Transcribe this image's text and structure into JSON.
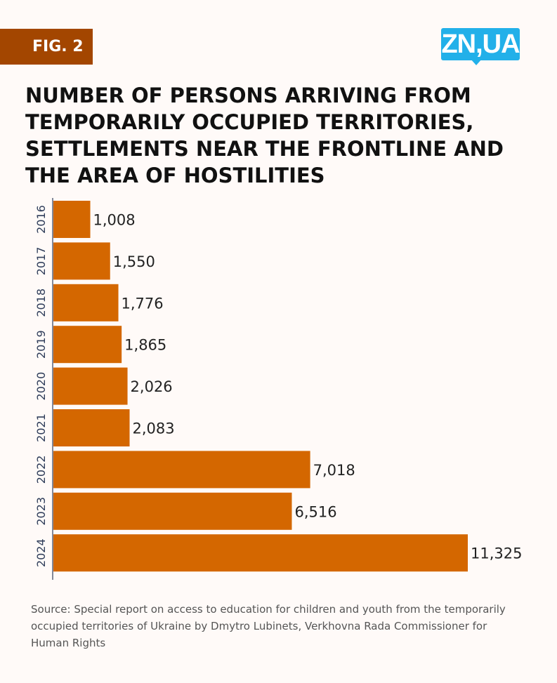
{
  "figure_label": "FIG. 2",
  "logo_text": "ZN,UA",
  "title": "NUMBER OF PERSONS ARRIVING FROM TEMPORARILY OCCUPIED TERRITORIES, SETTLEMENTS NEAR THE FRONTLINE AND THE AREA OF HOSTILITIES",
  "source": "Source: Special report on access to education for children and youth from the temporarily occupied territories of Ukraine by Dmytro Lubinets, Verkhovna Rada Commissioner for Human Rights",
  "chart_data": {
    "type": "bar",
    "orientation": "horizontal",
    "categories": [
      "2016",
      "2017",
      "2018",
      "2019",
      "2020",
      "2021",
      "2022",
      "2023",
      "2024"
    ],
    "values": [
      1008,
      1550,
      1776,
      1865,
      2026,
      2083,
      7018,
      6516,
      11325
    ],
    "data_labels": [
      "1,008",
      "1,550",
      "1,776",
      "1,865",
      "2,026",
      "2,083",
      "7,018",
      "6,516",
      "11,325"
    ],
    "bar_color": "#d46700",
    "grid": false
  }
}
